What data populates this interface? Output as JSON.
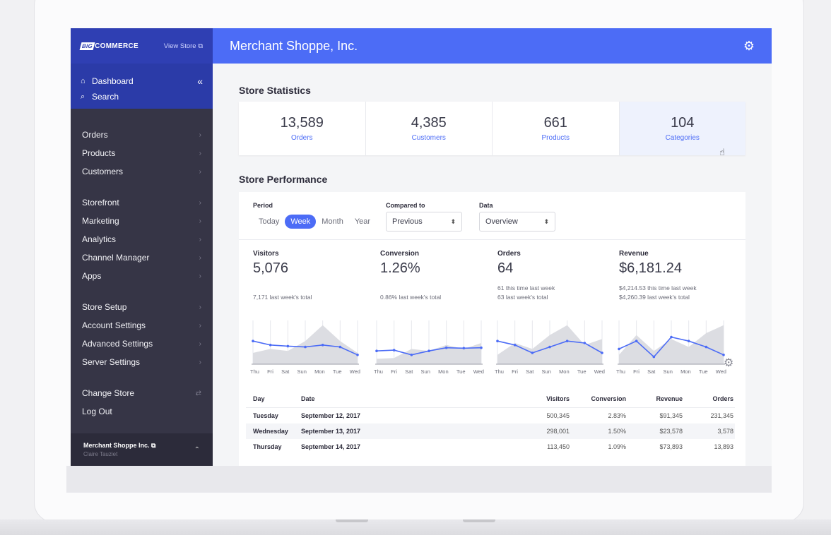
{
  "sidebar": {
    "brand": {
      "big": "BIG",
      "rest": "COMMERCE"
    },
    "view_store": "View Store ⧉",
    "top": [
      {
        "label": "Dashboard",
        "icon": "home-icon"
      },
      {
        "label": "Search",
        "icon": "search-icon"
      }
    ],
    "groups": [
      [
        "Orders",
        "Products",
        "Customers"
      ],
      [
        "Storefront",
        "Marketing",
        "Analytics",
        "Channel Manager",
        "Apps"
      ],
      [
        "Store Setup",
        "Account Settings",
        "Advanced Settings",
        "Server Settings"
      ]
    ],
    "bottom": [
      "Change Store",
      "Log Out"
    ],
    "account": {
      "name": "Merchant Shoppe Inc. ⧉",
      "user": "Claire Tauziet"
    }
  },
  "header": {
    "title": "Merchant Shoppe, Inc."
  },
  "stats": {
    "title": "Store Statistics",
    "items": [
      {
        "value": "13,589",
        "label": "Orders"
      },
      {
        "value": "4,385",
        "label": "Customers"
      },
      {
        "value": "661",
        "label": "Products"
      },
      {
        "value": "104",
        "label": "Categories"
      }
    ]
  },
  "performance": {
    "title": "Store Performance",
    "period_label": "Period",
    "period_options": [
      "Today",
      "Week",
      "Month",
      "Year"
    ],
    "period_selected": "Week",
    "compared_label": "Compared to",
    "compared_value": "Previous",
    "data_label": "Data",
    "data_value": "Overview",
    "days": [
      "Thu",
      "Fri",
      "Sat",
      "Sun",
      "Mon",
      "Tue",
      "Wed"
    ],
    "metrics": [
      {
        "name": "Visitors",
        "value": "5,076",
        "sub1": "7,171 last week's total",
        "sub2": ""
      },
      {
        "name": "Conversion",
        "value": "1.26%",
        "sub1": "0.86% last week's total",
        "sub2": ""
      },
      {
        "name": "Orders",
        "value": "64",
        "sub1": "61 this time last week",
        "sub2": "63 last week's total"
      },
      {
        "name": "Revenue",
        "value": "$6,181.24",
        "sub1": "$4,214.53 this time last week",
        "sub2": "$4,260.39 last week's total"
      }
    ]
  },
  "chart_data": [
    {
      "type": "area",
      "name": "Visitors",
      "categories": [
        "Thu",
        "Fri",
        "Sat",
        "Sun",
        "Mon",
        "Tue",
        "Wed"
      ],
      "current": [
        0.55,
        0.45,
        0.42,
        0.4,
        0.45,
        0.4,
        0.2
      ],
      "previous": [
        0.25,
        0.35,
        0.3,
        0.55,
        0.95,
        0.55,
        0.25
      ]
    },
    {
      "type": "area",
      "name": "Conversion",
      "categories": [
        "Thu",
        "Fri",
        "Sat",
        "Sun",
        "Mon",
        "Tue",
        "Wed"
      ],
      "current": [
        0.3,
        0.32,
        0.2,
        0.3,
        0.38,
        0.37,
        0.38
      ],
      "previous": [
        0.1,
        0.12,
        0.35,
        0.3,
        0.45,
        0.35,
        0.5
      ]
    },
    {
      "type": "area",
      "name": "Orders",
      "categories": [
        "Thu",
        "Fri",
        "Sat",
        "Sun",
        "Mon",
        "Tue",
        "Wed"
      ],
      "current": [
        0.55,
        0.45,
        0.25,
        0.4,
        0.55,
        0.5,
        0.25
      ],
      "previous": [
        0.2,
        0.5,
        0.35,
        0.7,
        0.95,
        0.45,
        0.6
      ]
    },
    {
      "type": "area",
      "name": "Revenue",
      "categories": [
        "Thu",
        "Fri",
        "Sat",
        "Sun",
        "Mon",
        "Tue",
        "Wed"
      ],
      "current": [
        0.35,
        0.55,
        0.15,
        0.65,
        0.55,
        0.4,
        0.2
      ],
      "previous": [
        0.2,
        0.7,
        0.3,
        0.6,
        0.4,
        0.75,
        0.95
      ]
    }
  ],
  "table": {
    "headers": {
      "day": "Day",
      "date": "Date",
      "visitors": "Visitors",
      "conversion": "Conversion",
      "revenue": "Revenue",
      "orders": "Orders"
    },
    "rows": [
      {
        "day": "Tuesday",
        "date": "September 12, 2017",
        "visitors": "500,345",
        "conversion": "2.83%",
        "revenue": "$91,345",
        "orders": "231,345"
      },
      {
        "day": "Wednesday",
        "date": "September 13, 2017",
        "visitors": "298,001",
        "conversion": "1.50%",
        "revenue": "$23,578",
        "orders": "3,578"
      },
      {
        "day": "Thursday",
        "date": "September 14, 2017",
        "visitors": "113,450",
        "conversion": "1.09%",
        "revenue": "$73,893",
        "orders": "13,893"
      }
    ]
  },
  "colors": {
    "accent": "#4c6cf6",
    "sidebar": "#363546",
    "brand": "#2f3fb3"
  }
}
